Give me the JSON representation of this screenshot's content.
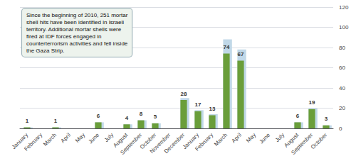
{
  "chart_data": {
    "type": "bar",
    "categories": [
      "January",
      "February",
      "March",
      "April",
      "May",
      "June",
      "July",
      "August",
      "September",
      "October",
      "November",
      "December",
      "January",
      "February",
      "March",
      "April",
      "May",
      "June",
      "July",
      "August",
      "September",
      "October"
    ],
    "series": [
      {
        "color": "#c0d8e8",
        "values": [
          1,
          0,
          1,
          0,
          0,
          6,
          0,
          4,
          8,
          5,
          0,
          30,
          18,
          14,
          88,
          78,
          0,
          0,
          0,
          6,
          20,
          3
        ]
      },
      {
        "color": "#6a9e3a",
        "values": [
          1,
          0,
          1,
          0,
          0,
          6,
          0,
          4,
          8,
          5,
          0,
          28,
          17,
          13,
          74,
          67,
          0,
          0,
          0,
          6,
          19,
          3
        ],
        "data_labels": true,
        "value_labels": [
          "1",
          null,
          "1",
          null,
          null,
          "6",
          null,
          "4",
          "8",
          "5",
          null,
          "28",
          "17",
          "13",
          "74",
          "67",
          null,
          null,
          null,
          "6",
          "19",
          "3"
        ]
      }
    ],
    "annotation": "Since the beginning of 2010, 251 mortar\nshell hits have been identified in Israeli\nterritory. Additional mortar shells were\nfired at IDF forces engaged in\ncounterterrorism activities and fell inside\nthe Gaza Strip.",
    "ylim": [
      0,
      120
    ],
    "yticks": [
      0,
      20,
      40,
      60,
      80,
      100,
      120
    ],
    "grid": true
  }
}
